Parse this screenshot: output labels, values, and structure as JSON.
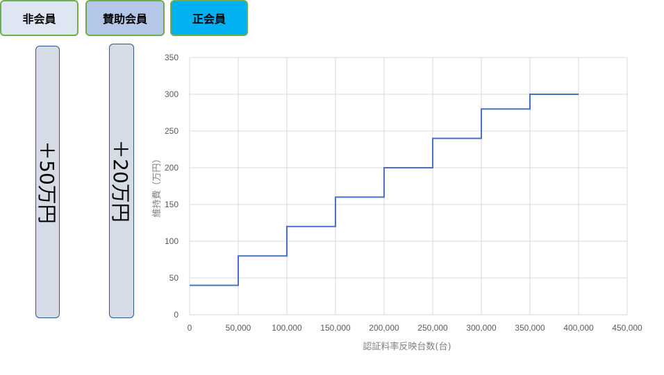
{
  "tabs": [
    {
      "label": "非会員"
    },
    {
      "label": "賛助会員"
    },
    {
      "label": "正会員"
    }
  ],
  "badges": [
    {
      "text": "＋50万円"
    },
    {
      "text": "＋20万円"
    }
  ],
  "colors": {
    "line": "#4472c4",
    "grid": "#d9d9d9",
    "tab_border": "#70ad47",
    "active_tab": "#00b0f0"
  },
  "chart_data": {
    "type": "line",
    "step": true,
    "xlabel": "認証料率反映台数(台)",
    "ylabel": "維持費（万円）",
    "xlim": [
      0,
      450000
    ],
    "ylim": [
      0,
      350
    ],
    "x_ticks": [
      "0",
      "50,000",
      "100,000",
      "150,000",
      "200,000",
      "250,000",
      "300,000",
      "350,000",
      "400,000",
      "450,000"
    ],
    "y_ticks": [
      "0",
      "50",
      "100",
      "150",
      "200",
      "250",
      "300",
      "350"
    ],
    "x_tick_values": [
      0,
      50000,
      100000,
      150000,
      200000,
      250000,
      300000,
      350000,
      400000,
      450000
    ],
    "y_tick_values": [
      0,
      50,
      100,
      150,
      200,
      250,
      300,
      350
    ],
    "grid": true,
    "series": [
      {
        "x": [
          0,
          50000,
          50000,
          100000,
          100000,
          150000,
          150000,
          200000,
          200000,
          250000,
          250000,
          300000,
          300000,
          350000,
          350000,
          400000
        ],
        "values": [
          40,
          40,
          80,
          80,
          120,
          120,
          160,
          160,
          200,
          200,
          240,
          240,
          280,
          280,
          300,
          300
        ]
      }
    ]
  }
}
